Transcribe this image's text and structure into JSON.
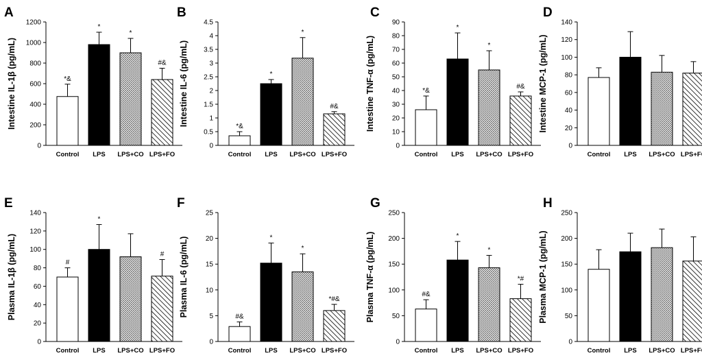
{
  "figure": {
    "categories": [
      "Control",
      "LPS",
      "LPS+CO",
      "LPS+FO"
    ],
    "fills": [
      "white",
      "black",
      "crosshatch",
      "diagonal"
    ],
    "colors": {
      "bar_stroke": "#000000",
      "black_fill": "#000000",
      "white_fill": "#ffffff"
    }
  },
  "chart_data": [
    {
      "panel": "A",
      "type": "bar",
      "ylabel": "Intestine IL-1β (pg/mL)",
      "ylim": [
        0,
        1200
      ],
      "yticks": [
        "0",
        "200",
        "400",
        "600",
        "800",
        "1000",
        "1200"
      ],
      "categories": [
        "Control",
        "LPS",
        "LPS+CO",
        "LPS+FO"
      ],
      "values": [
        475,
        980,
        900,
        640
      ],
      "errors": [
        120,
        120,
        140,
        110
      ],
      "annotations": [
        "*&",
        "*",
        "*",
        "#&"
      ]
    },
    {
      "panel": "B",
      "type": "bar",
      "ylabel": "Intestine IL-6 (pg/mL)",
      "ylim": [
        0,
        4.5
      ],
      "yticks": [
        "0",
        "0.5",
        "1",
        "1.5",
        "2",
        "2.5",
        "3",
        "3.5",
        "4",
        "4.5"
      ],
      "categories": [
        "Control",
        "LPS",
        "LPS+CO",
        "LPS+FO"
      ],
      "values": [
        0.35,
        2.25,
        3.18,
        1.15
      ],
      "errors": [
        0.15,
        0.15,
        0.75,
        0.08
      ],
      "annotations": [
        "*&",
        "*",
        "*",
        "#&"
      ]
    },
    {
      "panel": "C",
      "type": "bar",
      "ylabel": "Intestine TNF-α (pg/mL)",
      "ylim": [
        0,
        90
      ],
      "yticks": [
        "0",
        "10",
        "20",
        "30",
        "40",
        "50",
        "60",
        "70",
        "80",
        "90"
      ],
      "categories": [
        "Control",
        "LPS",
        "LPS+CO",
        "LPS+FO"
      ],
      "values": [
        26,
        63,
        55,
        36
      ],
      "errors": [
        10,
        19,
        14,
        3
      ],
      "annotations": [
        "*&",
        "*",
        "*",
        "#&"
      ]
    },
    {
      "panel": "D",
      "type": "bar",
      "ylabel": "Intestine MCP-1 (pg/mL)",
      "ylim": [
        0,
        140
      ],
      "yticks": [
        "0",
        "20",
        "40",
        "60",
        "80",
        "100",
        "120",
        "140"
      ],
      "categories": [
        "Control",
        "LPS",
        "LPS+CO",
        "LPS+FO"
      ],
      "values": [
        77,
        100,
        83,
        82
      ],
      "errors": [
        11,
        29,
        19,
        13
      ],
      "annotations": [
        "",
        "",
        "",
        ""
      ]
    },
    {
      "panel": "E",
      "type": "bar",
      "ylabel": "Plasma IL-1β (pg/mL)",
      "ylim": [
        0,
        140
      ],
      "yticks": [
        "0",
        "20",
        "40",
        "60",
        "80",
        "100",
        "120",
        "140"
      ],
      "categories": [
        "Control",
        "LPS",
        "LPS+CO",
        "LPS+FO"
      ],
      "values": [
        70,
        100,
        92,
        71
      ],
      "errors": [
        10,
        27,
        25,
        18
      ],
      "annotations": [
        "#",
        "*",
        "",
        "#"
      ]
    },
    {
      "panel": "F",
      "type": "bar",
      "ylabel": "Plasma IL-6 (pg/mL)",
      "ylim": [
        0,
        25
      ],
      "yticks": [
        "0",
        "5",
        "10",
        "15",
        "20",
        "25"
      ],
      "categories": [
        "Control",
        "LPS",
        "LPS+CO",
        "LPS+FO"
      ],
      "values": [
        2.9,
        15.2,
        13.5,
        6.0
      ],
      "errors": [
        0.9,
        3.9,
        3.5,
        1.2
      ],
      "annotations": [
        "#&",
        "*",
        "*",
        "*#&"
      ]
    },
    {
      "panel": "G",
      "type": "bar",
      "ylabel": "Plasma TNF-α (pg/mL)",
      "ylim": [
        0,
        250
      ],
      "yticks": [
        "0",
        "50",
        "100",
        "150",
        "200",
        "250"
      ],
      "categories": [
        "Control",
        "LPS",
        "LPS+CO",
        "LPS+FO"
      ],
      "values": [
        63,
        158,
        143,
        83
      ],
      "errors": [
        18,
        36,
        24,
        28
      ],
      "annotations": [
        "#&",
        "*",
        "*",
        "*#"
      ]
    },
    {
      "panel": "H",
      "type": "bar",
      "ylabel": "Plasma MCP-1 (pg/mL)",
      "ylim": [
        0,
        250
      ],
      "yticks": [
        "0",
        "50",
        "100",
        "150",
        "200",
        "250"
      ],
      "categories": [
        "Control",
        "LPS",
        "LPS+CO",
        "LPS+FO"
      ],
      "values": [
        140,
        174,
        182,
        156
      ],
      "errors": [
        38,
        36,
        36,
        47
      ],
      "annotations": [
        "",
        "",
        "",
        ""
      ]
    }
  ]
}
